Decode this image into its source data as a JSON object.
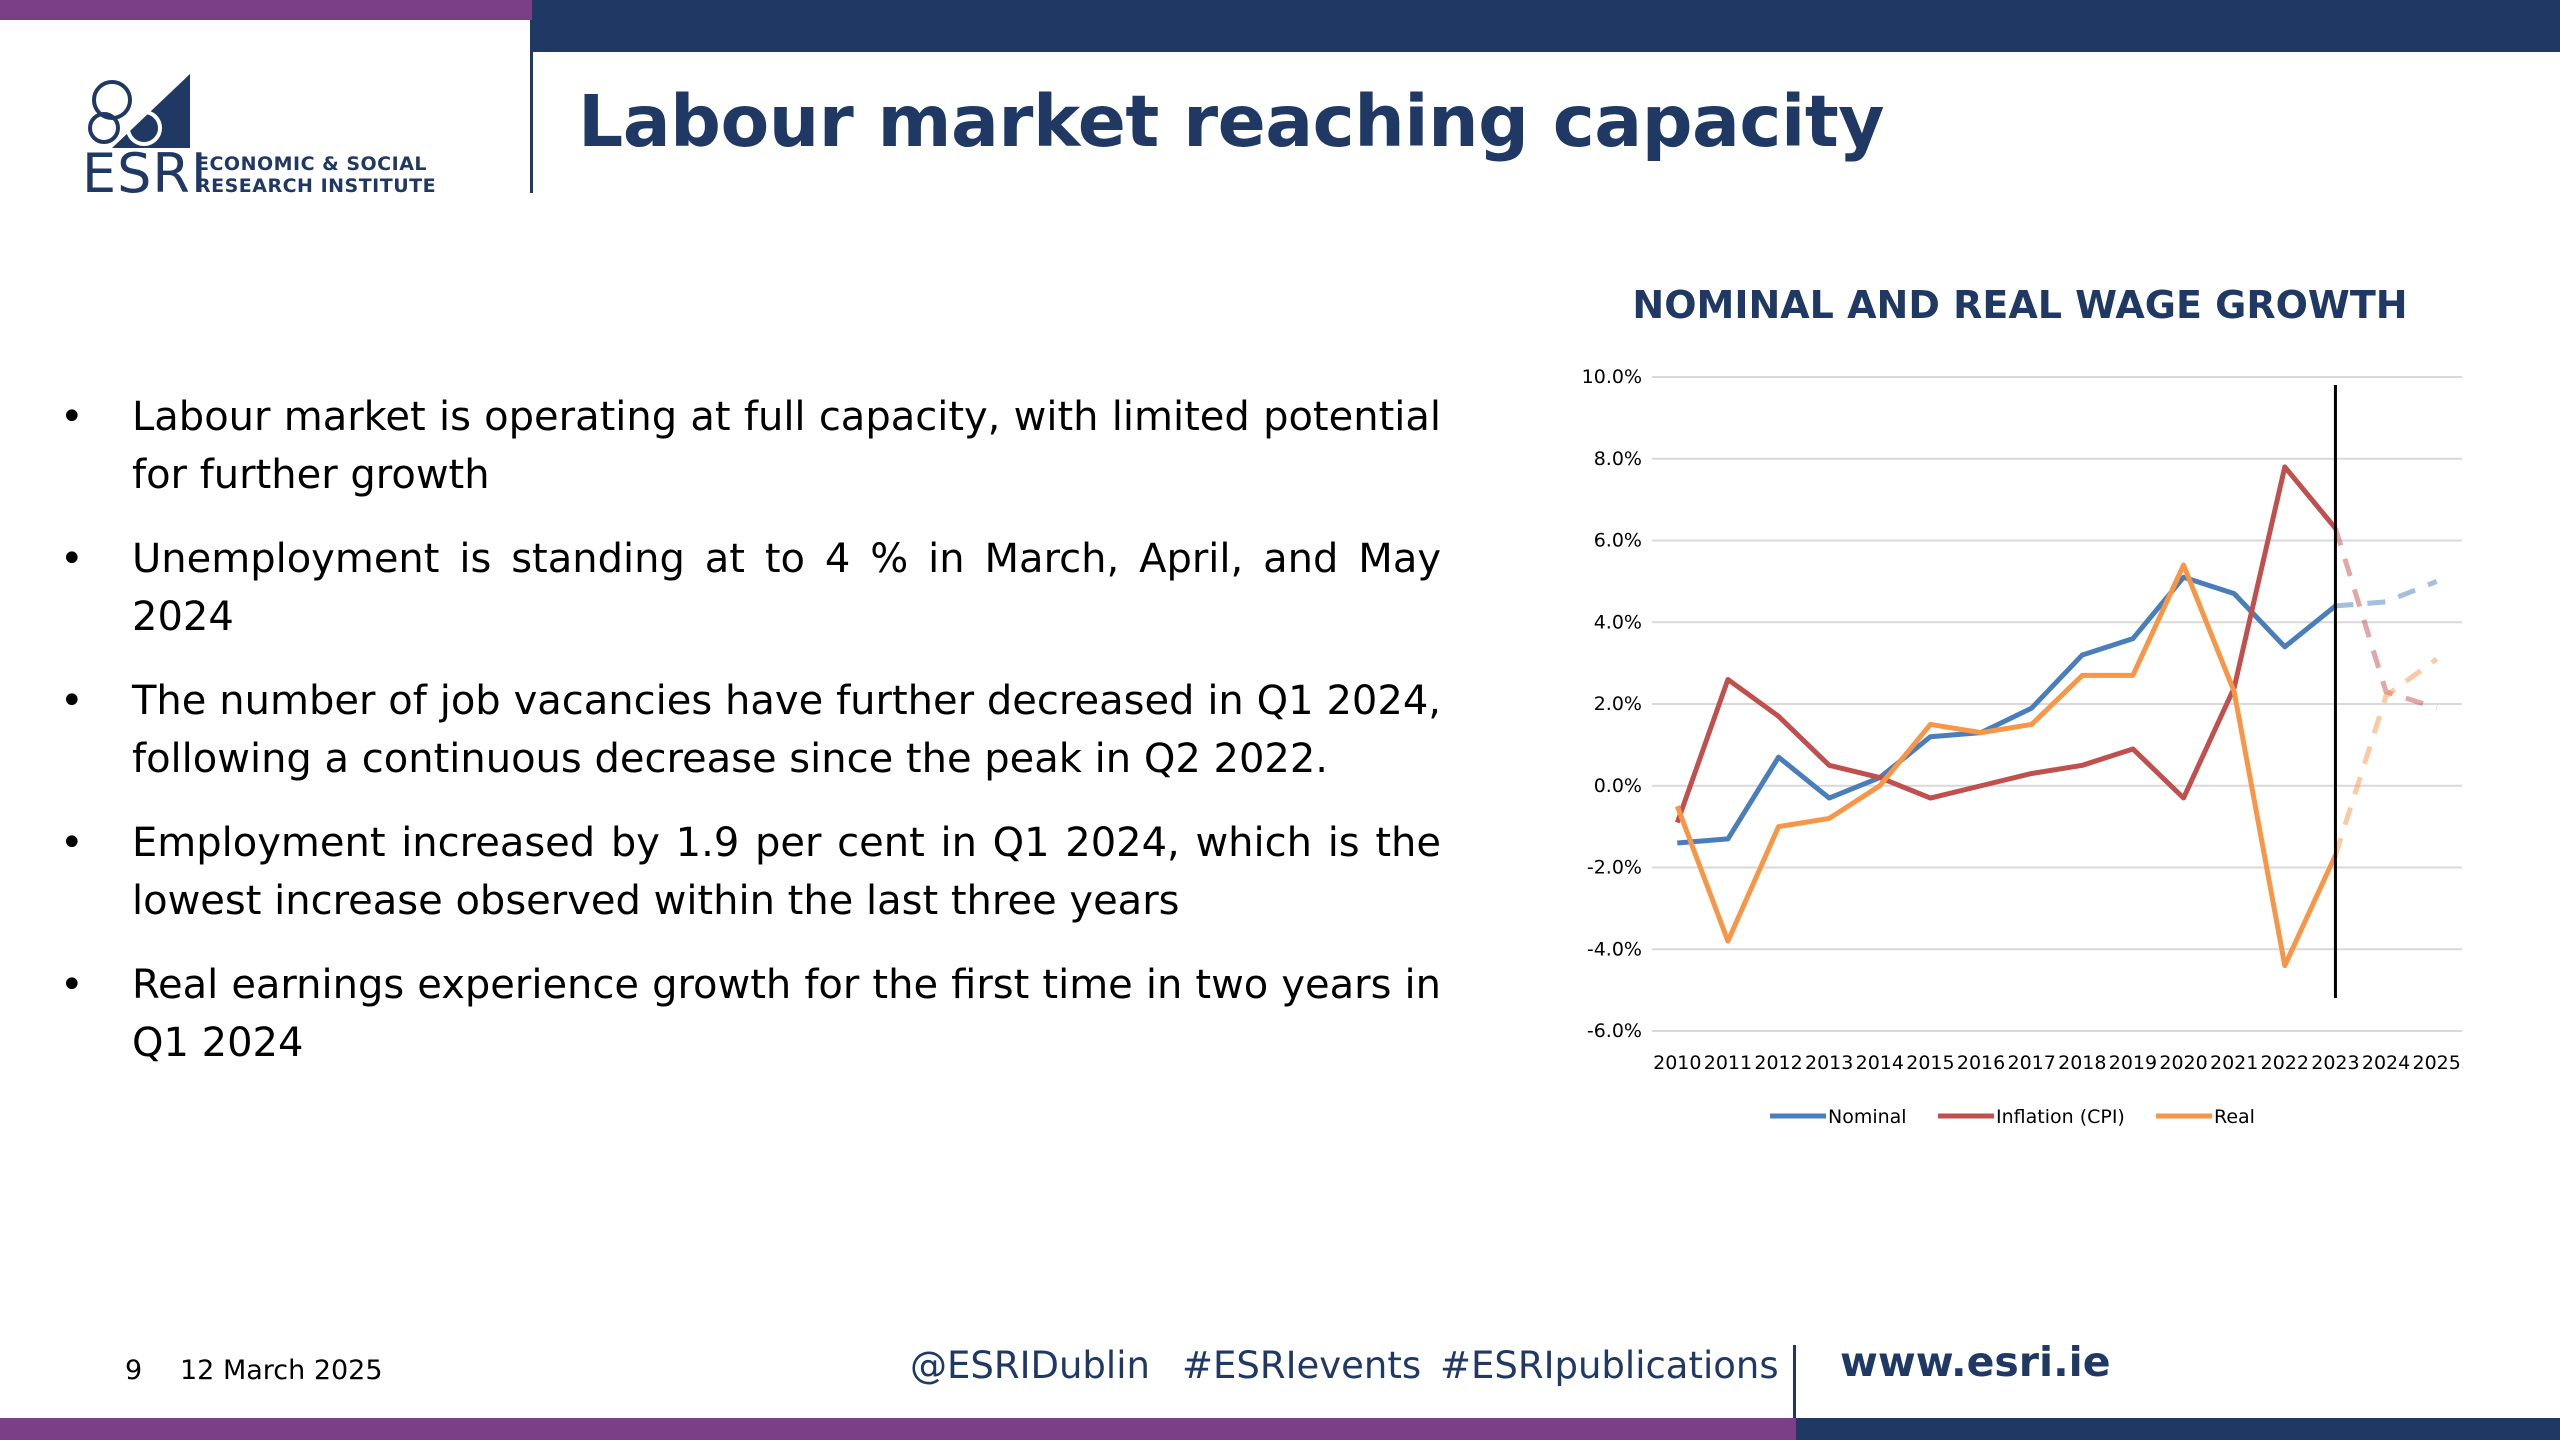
{
  "header": {
    "title": "Labour market reaching capacity",
    "logo": {
      "text": "ESRI",
      "line1": "ECONOMIC & SOCIAL",
      "line2": "RESEARCH INSTITUTE"
    }
  },
  "bullets": [
    "Labour market is operating at full capacity, with limited potential for further growth",
    "Unemployment is standing at to 4 % in March, April, and May 2024",
    "The number of job vacancies have further decreased in Q1 2024, following a continuous decrease since the peak in Q2 2022.",
    "Employment increased by 1.9 per cent in Q1 2024, which is the lowest increase observed within the last three years",
    "Real earnings experience growth for the first time in two years in Q1 2024"
  ],
  "chart_data": {
    "type": "line",
    "title": "NOMINAL AND REAL WAGE GROWTH",
    "categories": [
      "2010",
      "2011",
      "2012",
      "2013",
      "2014",
      "2015",
      "2016",
      "2017",
      "2018",
      "2019",
      "2020",
      "2021",
      "2022",
      "2023",
      "2024",
      "2025"
    ],
    "ylim": [
      -6,
      10
    ],
    "yticks": [
      "-6.0%",
      "-4.0%",
      "-2.0%",
      "0.0%",
      "2.0%",
      "4.0%",
      "6.0%",
      "8.0%",
      "10.0%"
    ],
    "grid": true,
    "legend": "bottom",
    "forecast_from": "2023",
    "series": [
      {
        "name": "Nominal",
        "color": "#4a7ebb",
        "values": [
          -1.4,
          -1.3,
          0.7,
          -0.3,
          0.2,
          1.2,
          1.3,
          1.9,
          3.2,
          3.6,
          5.1,
          4.7,
          3.4,
          4.4,
          4.5,
          5.0
        ]
      },
      {
        "name": "Inflation (CPI)",
        "color": "#c0504d",
        "values": [
          -0.9,
          2.6,
          1.7,
          0.5,
          0.2,
          -0.3,
          0.0,
          0.3,
          0.5,
          0.9,
          -0.3,
          2.4,
          7.8,
          6.3,
          2.3,
          1.9
        ]
      },
      {
        "name": "Real",
        "color": "#f79646",
        "values": [
          -0.5,
          -3.8,
          -1.0,
          -0.8,
          0.0,
          1.5,
          1.3,
          1.5,
          2.7,
          2.7,
          5.4,
          2.3,
          -4.4,
          -1.7,
          2.2,
          3.1
        ]
      }
    ]
  },
  "footer": {
    "page": "9",
    "date": "12 March 2025",
    "twitter": "@ESRIDublin",
    "tag1": "#ESRIevents",
    "tag2": "#ESRIpublications",
    "website": "www.esri.ie"
  }
}
